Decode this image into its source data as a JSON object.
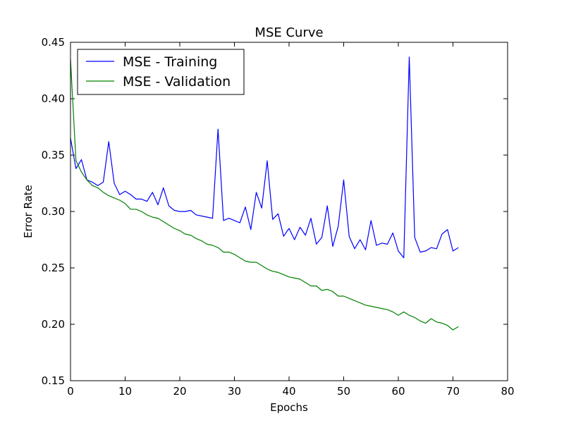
{
  "chart_data": {
    "type": "line",
    "title": "MSE Curve",
    "xlabel": "Epochs",
    "ylabel": "Error Rate",
    "xlim": [
      0,
      80
    ],
    "ylim": [
      0.15,
      0.45
    ],
    "x_ticks": [
      0,
      10,
      20,
      30,
      40,
      50,
      60,
      70,
      80
    ],
    "x_tick_labels": [
      "0",
      "10",
      "20",
      "30",
      "40",
      "50",
      "60",
      "70",
      "80"
    ],
    "y_ticks": [
      0.15,
      0.2,
      0.25,
      0.3,
      0.35,
      0.4,
      0.45
    ],
    "y_tick_labels": [
      "0.15",
      "0.20",
      "0.25",
      "0.30",
      "0.35",
      "0.40",
      "0.45"
    ],
    "grid": false,
    "legend_position": "top-left",
    "series": [
      {
        "name": "MSE - Training",
        "color": "#0000ff",
        "x": [
          0,
          1,
          2,
          3,
          4,
          5,
          6,
          7,
          8,
          9,
          10,
          11,
          12,
          13,
          14,
          15,
          16,
          17,
          18,
          19,
          20,
          21,
          22,
          23,
          24,
          25,
          26,
          27,
          28,
          29,
          30,
          31,
          32,
          33,
          34,
          35,
          36,
          37,
          38,
          39,
          40,
          41,
          42,
          43,
          44,
          45,
          46,
          47,
          48,
          49,
          50,
          51,
          52,
          53,
          54,
          55,
          56,
          57,
          58,
          59,
          60,
          61,
          62,
          63,
          64,
          65,
          66,
          67,
          68,
          69,
          70,
          71
        ],
        "values": [
          0.365,
          0.338,
          0.346,
          0.328,
          0.326,
          0.323,
          0.326,
          0.362,
          0.325,
          0.315,
          0.318,
          0.315,
          0.311,
          0.311,
          0.309,
          0.317,
          0.306,
          0.321,
          0.305,
          0.301,
          0.3,
          0.3,
          0.301,
          0.297,
          0.296,
          0.295,
          0.294,
          0.373,
          0.292,
          0.294,
          0.292,
          0.29,
          0.304,
          0.284,
          0.317,
          0.303,
          0.345,
          0.293,
          0.298,
          0.278,
          0.285,
          0.275,
          0.286,
          0.279,
          0.294,
          0.271,
          0.277,
          0.305,
          0.269,
          0.287,
          0.328,
          0.278,
          0.267,
          0.275,
          0.266,
          0.292,
          0.27,
          0.272,
          0.271,
          0.281,
          0.265,
          0.259,
          0.437,
          0.277,
          0.264,
          0.265,
          0.268,
          0.267,
          0.28,
          0.284,
          0.265,
          0.268
        ]
      },
      {
        "name": "MSE - Validation",
        "color": "#008000",
        "x": [
          0,
          1,
          2,
          3,
          4,
          5,
          6,
          7,
          8,
          9,
          10,
          11,
          12,
          13,
          14,
          15,
          16,
          17,
          18,
          19,
          20,
          21,
          22,
          23,
          24,
          25,
          26,
          27,
          28,
          29,
          30,
          31,
          32,
          33,
          34,
          35,
          36,
          37,
          38,
          39,
          40,
          41,
          42,
          43,
          44,
          45,
          46,
          47,
          48,
          49,
          50,
          51,
          52,
          53,
          54,
          55,
          56,
          57,
          58,
          59,
          60,
          61,
          62,
          63,
          64,
          65,
          66,
          67,
          68,
          69,
          70,
          71
        ],
        "values": [
          0.435,
          0.345,
          0.335,
          0.328,
          0.323,
          0.321,
          0.317,
          0.314,
          0.312,
          0.31,
          0.307,
          0.302,
          0.302,
          0.3,
          0.297,
          0.295,
          0.294,
          0.291,
          0.288,
          0.285,
          0.283,
          0.28,
          0.279,
          0.276,
          0.274,
          0.271,
          0.27,
          0.268,
          0.264,
          0.264,
          0.262,
          0.259,
          0.256,
          0.255,
          0.255,
          0.252,
          0.249,
          0.247,
          0.246,
          0.244,
          0.242,
          0.241,
          0.24,
          0.237,
          0.234,
          0.234,
          0.23,
          0.231,
          0.229,
          0.225,
          0.225,
          0.223,
          0.221,
          0.219,
          0.217,
          0.216,
          0.215,
          0.214,
          0.213,
          0.211,
          0.208,
          0.211,
          0.208,
          0.206,
          0.203,
          0.201,
          0.205,
          0.202,
          0.201,
          0.199,
          0.195,
          0.198
        ]
      }
    ]
  }
}
